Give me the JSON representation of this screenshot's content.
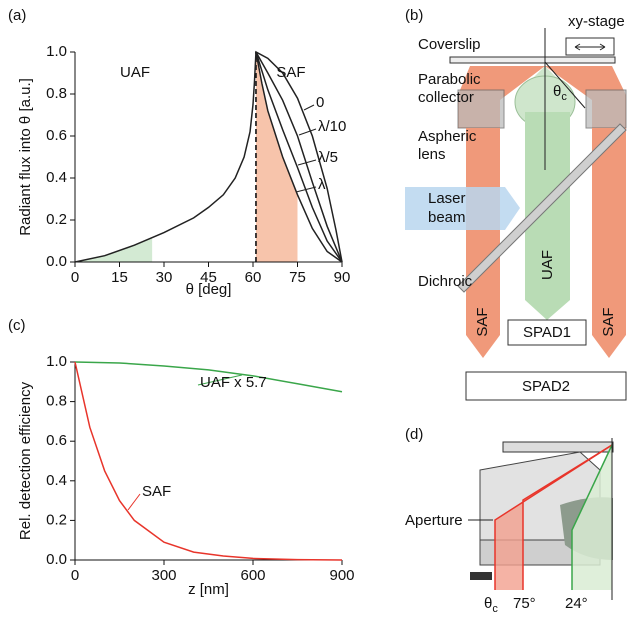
{
  "chart_data": [
    {
      "type": "line",
      "panel_label": "(a)",
      "xlabel": "θ [deg]",
      "ylabel": "Radiant flux into θ [a.u.]",
      "region_labels": [
        "UAF",
        "SAF"
      ],
      "xlim": [
        0,
        90
      ],
      "ylim": [
        0,
        1
      ],
      "xticks": [
        0,
        15,
        30,
        45,
        60,
        75,
        90
      ],
      "yticks": [
        {
          "value": 0,
          "label": "0.0"
        },
        0.2,
        0.4,
        0.6,
        0.8,
        {
          "value": 1,
          "label": "1.0"
        }
      ],
      "critical_angle": 61,
      "shade": [
        {
          "from": 0,
          "to": 26,
          "color": "#d3ead3"
        },
        {
          "from": 61,
          "to": 75,
          "color": "#f7c4ab"
        }
      ],
      "series": [
        {
          "name": "0",
          "color": "#222222",
          "x": [
            0,
            10,
            20,
            30,
            40,
            45,
            50,
            54,
            57,
            59,
            60,
            60.5,
            61,
            65,
            70,
            75,
            80,
            85,
            88,
            90
          ],
          "values": [
            0,
            0.03,
            0.08,
            0.14,
            0.21,
            0.26,
            0.32,
            0.4,
            0.5,
            0.62,
            0.75,
            0.86,
            1.0,
            0.97,
            0.9,
            0.78,
            0.6,
            0.35,
            0.15,
            0
          ]
        },
        {
          "name": "λ/10",
          "color": "#222222",
          "x": [
            61,
            65,
            70,
            75,
            80,
            85,
            90
          ],
          "values": [
            1.0,
            0.9,
            0.77,
            0.6,
            0.38,
            0.17,
            0
          ]
        },
        {
          "name": "λ/5",
          "color": "#222222",
          "x": [
            61,
            65,
            70,
            75,
            80,
            85,
            90
          ],
          "values": [
            1.0,
            0.82,
            0.63,
            0.45,
            0.26,
            0.1,
            0
          ]
        },
        {
          "name": "λ",
          "color": "#222222",
          "x": [
            61,
            63,
            65,
            70,
            75,
            80,
            85,
            90
          ],
          "values": [
            1.0,
            0.85,
            0.72,
            0.5,
            0.32,
            0.16,
            0.05,
            0
          ]
        }
      ]
    },
    {
      "type": "line",
      "panel_label": "(c)",
      "xlabel": "z [nm]",
      "ylabel": "Rel. detection efficiency",
      "xlim": [
        0,
        900
      ],
      "ylim": [
        0,
        1
      ],
      "xticks": [
        0,
        300,
        600,
        900
      ],
      "yticks": [
        {
          "value": 0,
          "label": "0.0"
        },
        0.2,
        0.4,
        0.6,
        0.8,
        {
          "value": 1,
          "label": "1.0"
        }
      ],
      "series": [
        {
          "name": "UAF x 5.7",
          "color": "#3aa64a",
          "x": [
            0,
            150,
            300,
            450,
            600,
            750,
            900
          ],
          "values": [
            1,
            0.995,
            0.98,
            0.96,
            0.93,
            0.89,
            0.85
          ]
        },
        {
          "name": "SAF",
          "color": "#e8352b",
          "x": [
            0,
            50,
            100,
            150,
            200,
            300,
            400,
            500,
            600,
            750,
            900
          ],
          "values": [
            1,
            0.67,
            0.45,
            0.3,
            0.2,
            0.09,
            0.04,
            0.02,
            0.008,
            0.002,
            0
          ]
        }
      ]
    }
  ],
  "diagram_b": {
    "panel_label": "(b)",
    "coverslip": "Coverslip",
    "stage": "xy-stage",
    "collector": [
      "Parabolic",
      "collector"
    ],
    "theta_c": {
      "symbol": "θ",
      "subscript": "c"
    },
    "lens": [
      "Aspheric",
      "lens"
    ],
    "laser": [
      "Laser",
      "beam"
    ],
    "dichroic": "Dichroic",
    "uaf": "UAF",
    "saf": [
      "SAF",
      "SAF"
    ],
    "spad1": "SPAD1",
    "spad2": "SPAD2"
  },
  "diagram_d": {
    "panel_label": "(d)",
    "aperture": "Aperture",
    "theta_c": {
      "symbol": "θ",
      "subscript": "c"
    },
    "angles": [
      "75°",
      "24°"
    ]
  }
}
